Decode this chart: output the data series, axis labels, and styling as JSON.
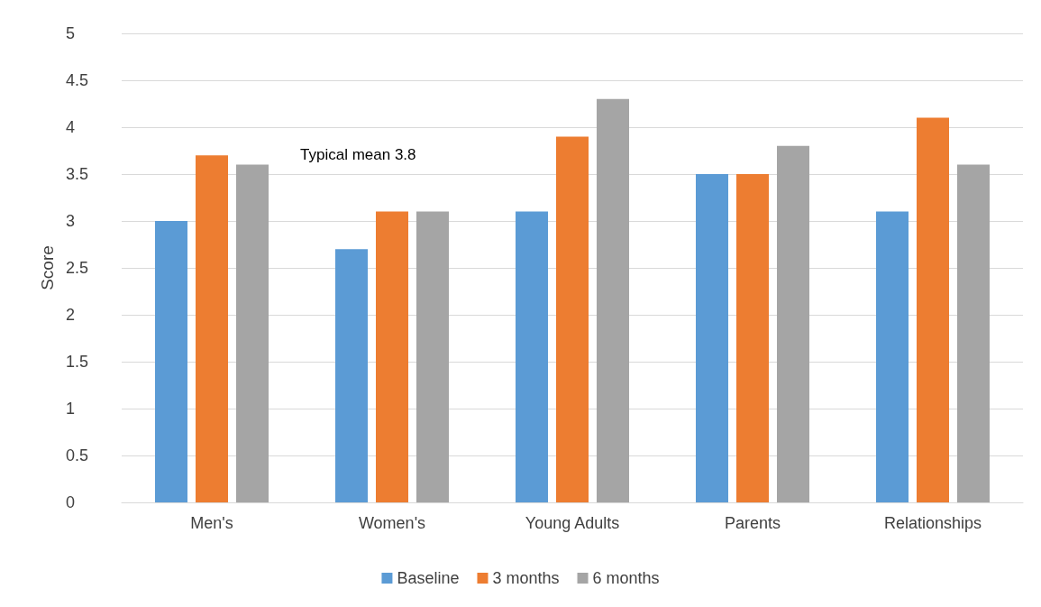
{
  "chart_data": {
    "type": "bar",
    "ylabel": "Score",
    "categories": [
      "Men's",
      "Women's",
      "Young Adults",
      "Parents",
      "Relationships"
    ],
    "series": [
      {
        "name": "Baseline",
        "color": "#5b9bd5",
        "values": [
          3.0,
          2.7,
          3.1,
          3.5,
          3.1
        ]
      },
      {
        "name": "3 months",
        "color": "#ed7d31",
        "values": [
          3.7,
          3.1,
          3.9,
          3.5,
          4.1
        ]
      },
      {
        "name": "6 months",
        "color": "#a5a5a5",
        "values": [
          3.6,
          3.1,
          4.3,
          3.8,
          3.6
        ]
      }
    ],
    "ylim": [
      0,
      5
    ],
    "yticks": [
      0,
      0.5,
      1,
      1.5,
      2,
      2.5,
      3,
      3.5,
      4,
      4.5,
      5
    ],
    "grid": "y",
    "legend": "bottom",
    "annotations": [
      "Typical mean 3.8"
    ]
  }
}
